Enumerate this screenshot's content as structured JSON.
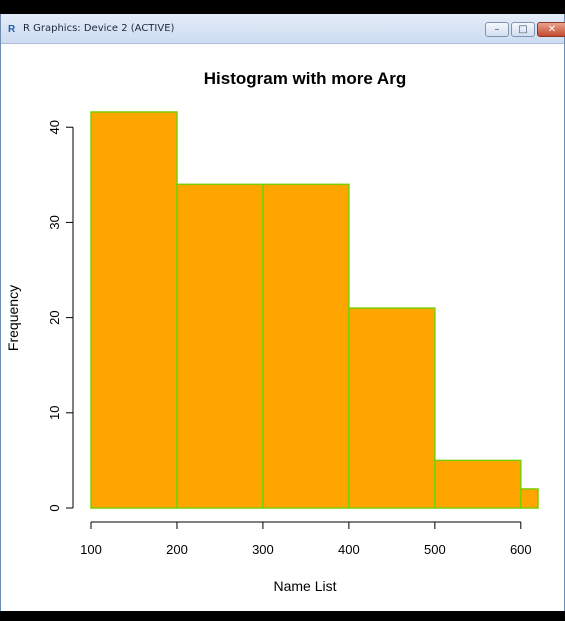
{
  "window": {
    "title": "R Graphics: Device 2 (ACTIVE)",
    "app_icon": "R",
    "minimize_glyph": "–",
    "maximize_glyph": "□",
    "close_glyph": "✕"
  },
  "chart_data": {
    "type": "bar",
    "title": "Histogram with more Arg",
    "xlabel": "Name List",
    "ylabel": "Frequency",
    "bins": [
      {
        "from": 100,
        "to": 200,
        "count": 41.6
      },
      {
        "from": 200,
        "to": 300,
        "count": 34
      },
      {
        "from": 300,
        "to": 400,
        "count": 34
      },
      {
        "from": 400,
        "to": 500,
        "count": 21
      },
      {
        "from": 500,
        "to": 600,
        "count": 5
      },
      {
        "from": 600,
        "to": 620,
        "count": 2
      }
    ],
    "x_ticks": [
      100,
      200,
      300,
      400,
      500,
      600
    ],
    "y_ticks": [
      0,
      10,
      20,
      30,
      40
    ],
    "xlim": [
      100,
      620
    ],
    "ylim": [
      0,
      41.6
    ],
    "colors": {
      "fill": "#FFA500",
      "border": "#7CCD00"
    }
  }
}
